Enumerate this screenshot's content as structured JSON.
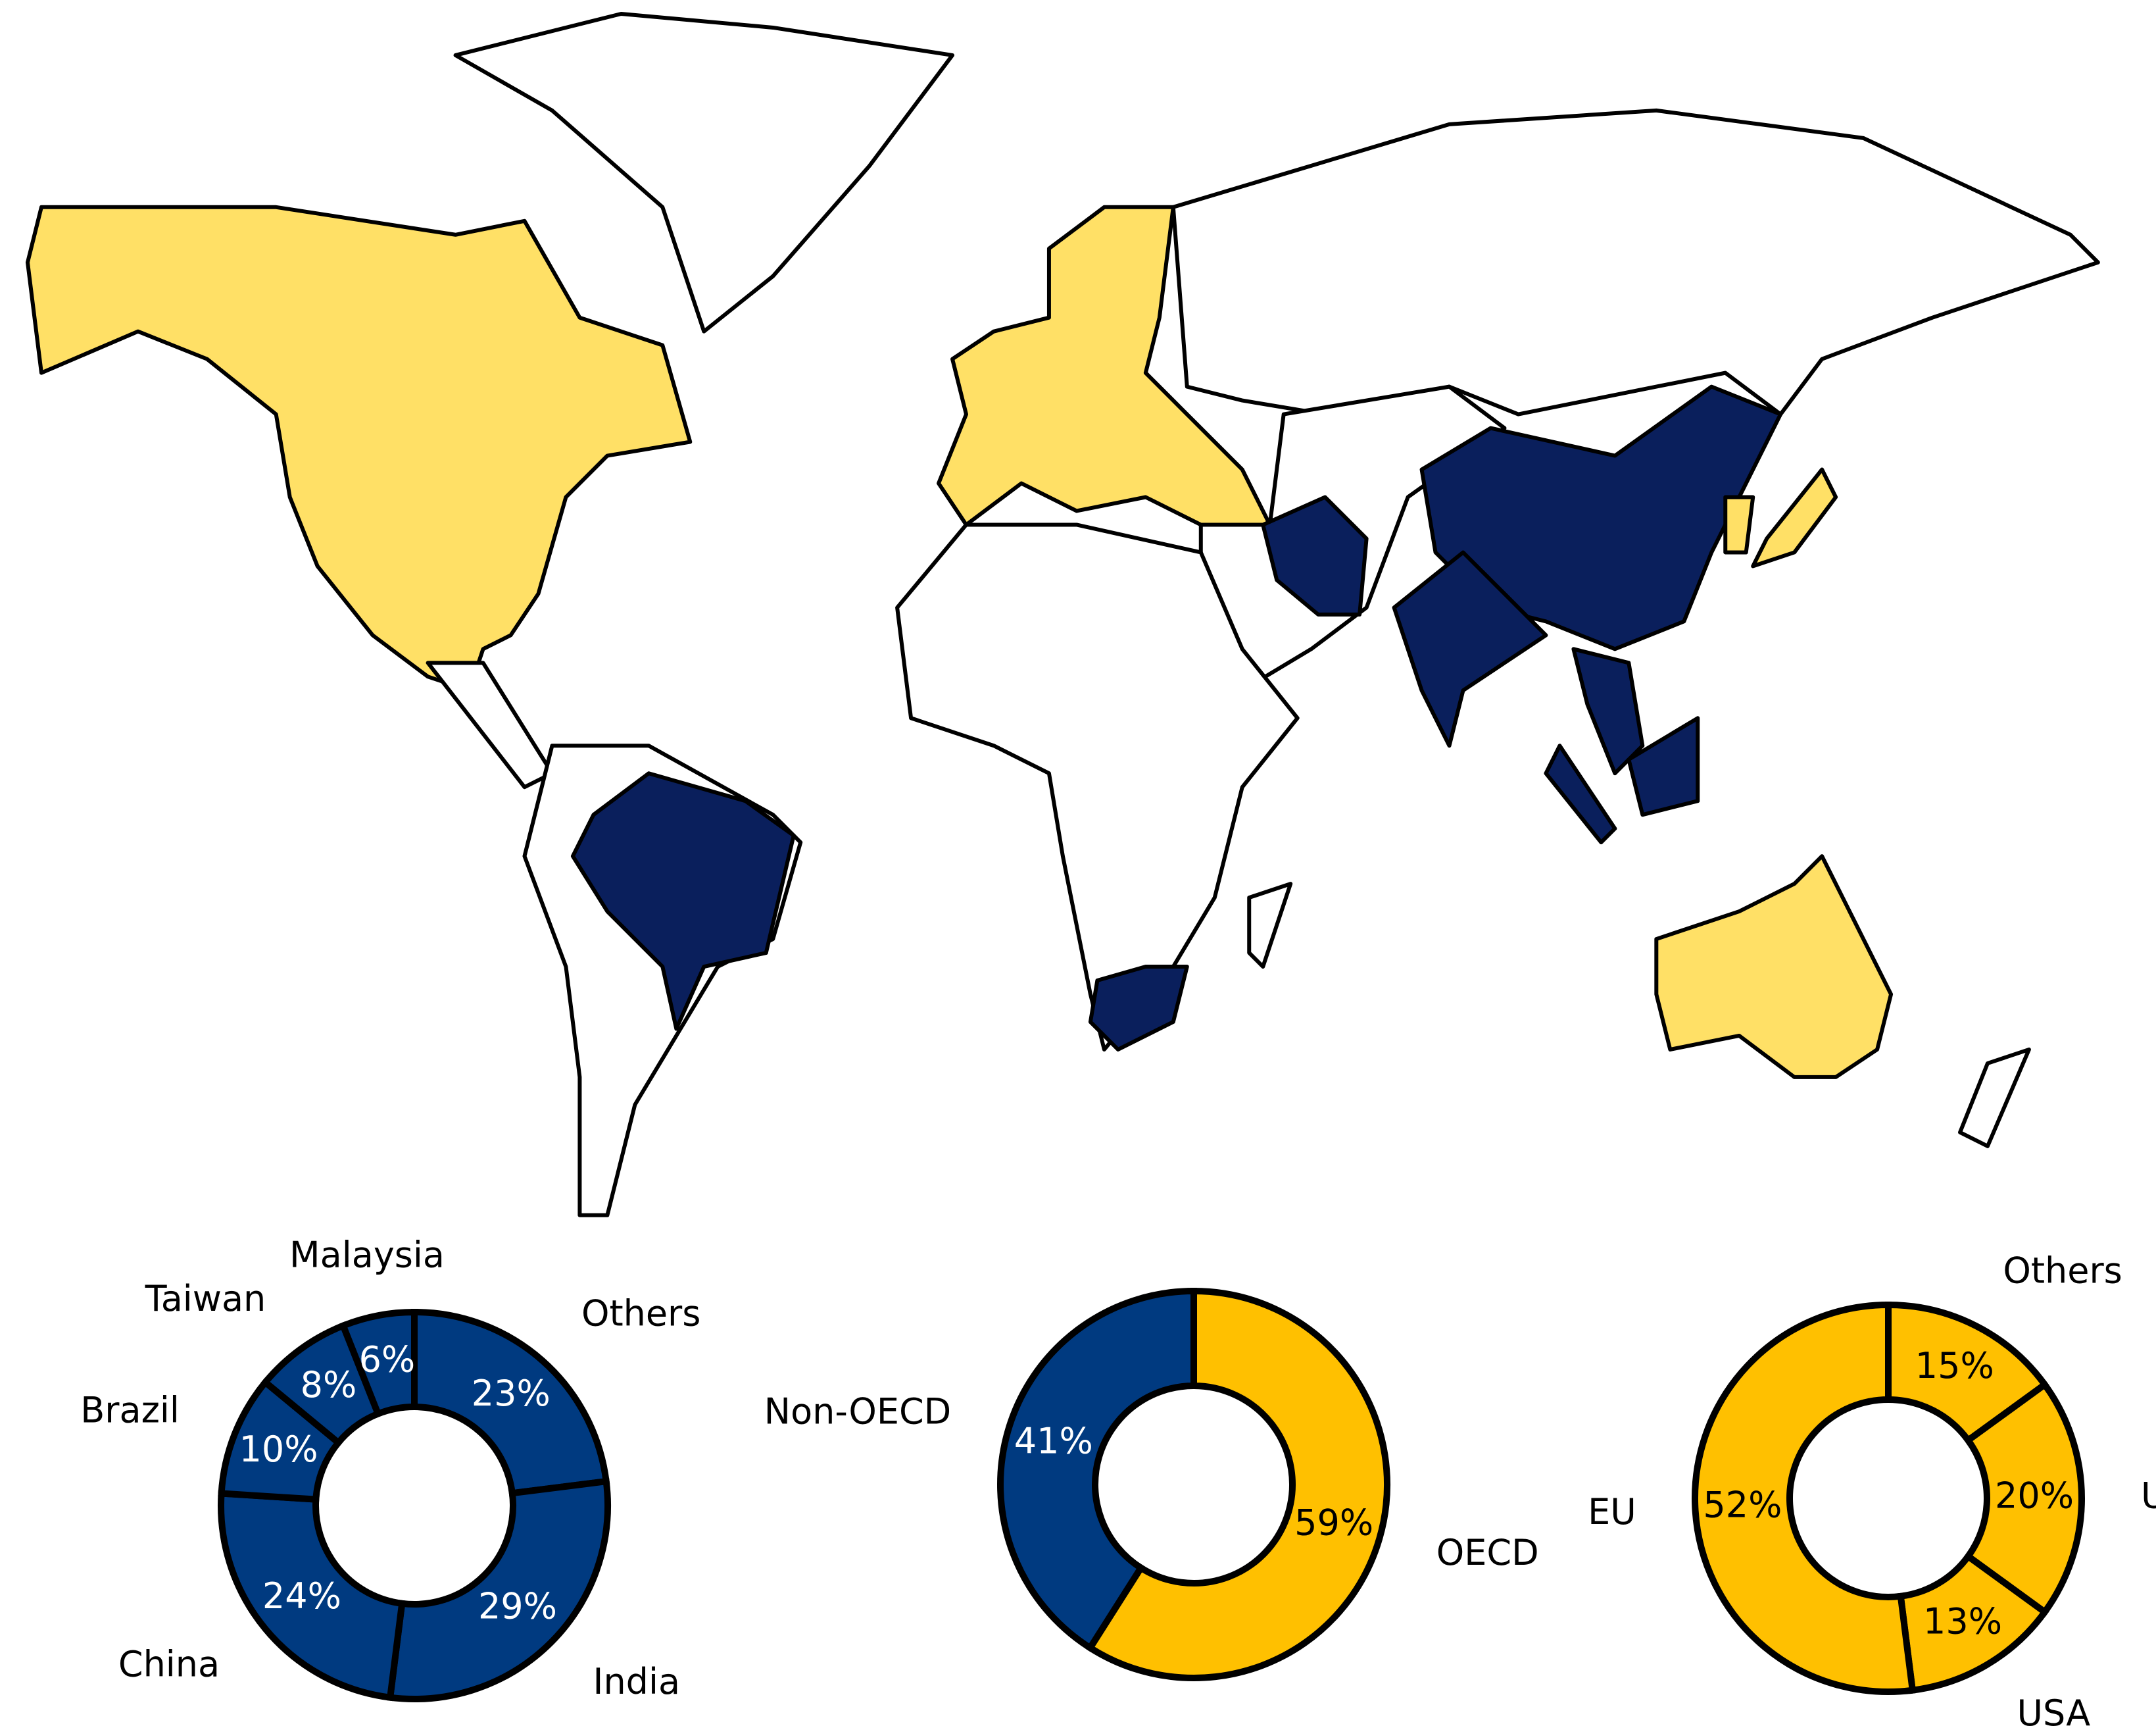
{
  "chart_data": [
    {
      "type": "donut",
      "categories": [
        "Others",
        "India",
        "China",
        "Brazil",
        "Taiwan",
        "Malaysia"
      ],
      "values": [
        23,
        29,
        24,
        10,
        8,
        6
      ],
      "value_labels": [
        "23%",
        "29%",
        "24%",
        "10%",
        "8%",
        "6%"
      ],
      "colors": [
        "#003a80",
        "#003a80",
        "#003a80",
        "#003a80",
        "#003a80",
        "#003a80"
      ]
    },
    {
      "type": "donut",
      "categories": [
        "OECD",
        "Non-OECD"
      ],
      "values": [
        59,
        41
      ],
      "value_labels": [
        "59%",
        "41%"
      ],
      "colors": [
        "#ffc000",
        "#003a80"
      ]
    },
    {
      "type": "donut",
      "categories": [
        "Others",
        "UK",
        "USA",
        "EU"
      ],
      "values": [
        15,
        20,
        13,
        52
      ],
      "value_labels": [
        "15%",
        "20%",
        "13%",
        "52%"
      ],
      "colors": [
        "#ffc000",
        "#ffc000",
        "#ffc000",
        "#ffc000"
      ]
    }
  ]
}
